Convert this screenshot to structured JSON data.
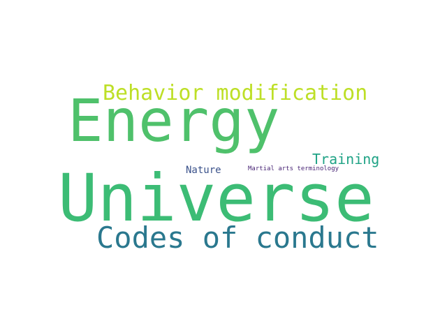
{
  "word_cloud": {
    "words": [
      {
        "key": "energy",
        "text": "Energy",
        "color": "#4fc16b"
      },
      {
        "key": "universe",
        "text": "Universe",
        "color": "#3cbc75"
      },
      {
        "key": "behavior",
        "text": "Behavior modification",
        "color": "#bddf26"
      },
      {
        "key": "codes",
        "text": "Codes of conduct",
        "color": "#2a788e"
      },
      {
        "key": "training",
        "text": "Training",
        "color": "#20a386"
      },
      {
        "key": "nature",
        "text": "Nature",
        "color": "#3b528b"
      },
      {
        "key": "martial",
        "text": "Martial arts terminology",
        "color": "#482475"
      }
    ]
  }
}
